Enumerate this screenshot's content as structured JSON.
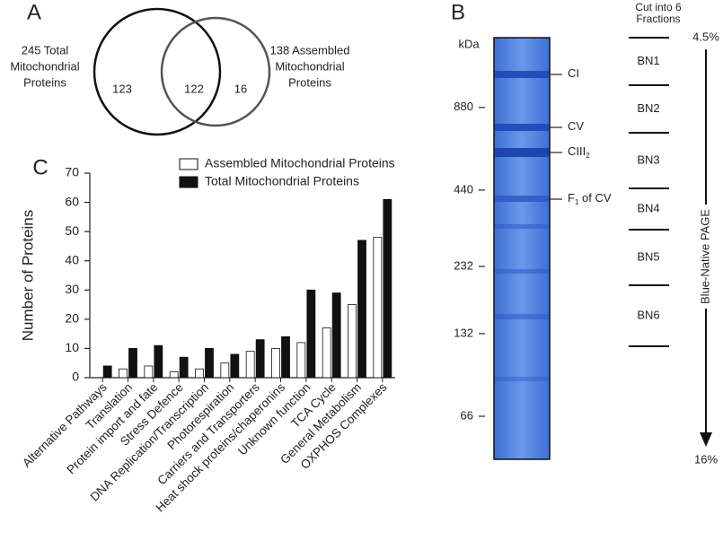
{
  "chart_data": [
    {
      "type": "venn",
      "panel": "A",
      "sets": [
        {
          "label": [
            "245 Total",
            "Mitochondrial",
            "Proteins"
          ],
          "color": "#111111"
        },
        {
          "label": [
            "138 Assembled",
            "Mitochondrial",
            "Proteins"
          ],
          "color": "#555555"
        }
      ],
      "values": [
        123,
        122,
        16
      ]
    },
    {
      "type": "gel",
      "panel": "B",
      "ylabel": "kDa",
      "log_scale": true,
      "color": "#4f83e3",
      "ylim": [
        1580,
        46
      ],
      "yticks": [
        880,
        440,
        232,
        132,
        66
      ],
      "bands": [
        {
          "label": "CI"
        },
        {
          "label": "CV"
        },
        {
          "label": "CIII",
          "sub": "2"
        },
        {
          "label": "F",
          "sub": "1",
          "suffix": " of CV"
        }
      ],
      "fractions": {
        "title": [
          "Cut into 6",
          "Fractions"
        ],
        "labels": [
          "BN1",
          "BN2",
          "BN3",
          "BN4",
          "BN5",
          "BN6"
        ],
        "top": "4.5%",
        "bottom": "16%",
        "direction_label": "Blue-Native PAGE"
      }
    },
    {
      "type": "bar",
      "panel": "C",
      "ylabel": "Number of Proteins",
      "categories": [
        "Alternative Pathways",
        "Translation",
        "Protein import and fate",
        "Stress Defence",
        "DNA Replication/Transcription",
        "Photorespiration",
        "Carriers and Transporters",
        "Heat shock proteins/chaperonins",
        "Unknown function",
        "TCA Cycle",
        "General Metabolism",
        "OXPHOS Complexes"
      ],
      "series": [
        {
          "name": "Assembled Mitochondrial Proteins",
          "color": "#ffffff",
          "values": [
            0,
            3,
            4,
            2,
            3,
            5,
            9,
            10,
            12,
            17,
            25,
            48
          ]
        },
        {
          "name": "Total Mitochondrial Proteins",
          "color": "#111111",
          "values": [
            4,
            10,
            11,
            7,
            10,
            8,
            13,
            14,
            30,
            29,
            47,
            61
          ]
        }
      ],
      "ylim": [
        0,
        70
      ],
      "yticks": [
        0,
        10,
        20,
        30,
        40,
        50,
        60,
        70
      ],
      "legend": "top"
    }
  ]
}
